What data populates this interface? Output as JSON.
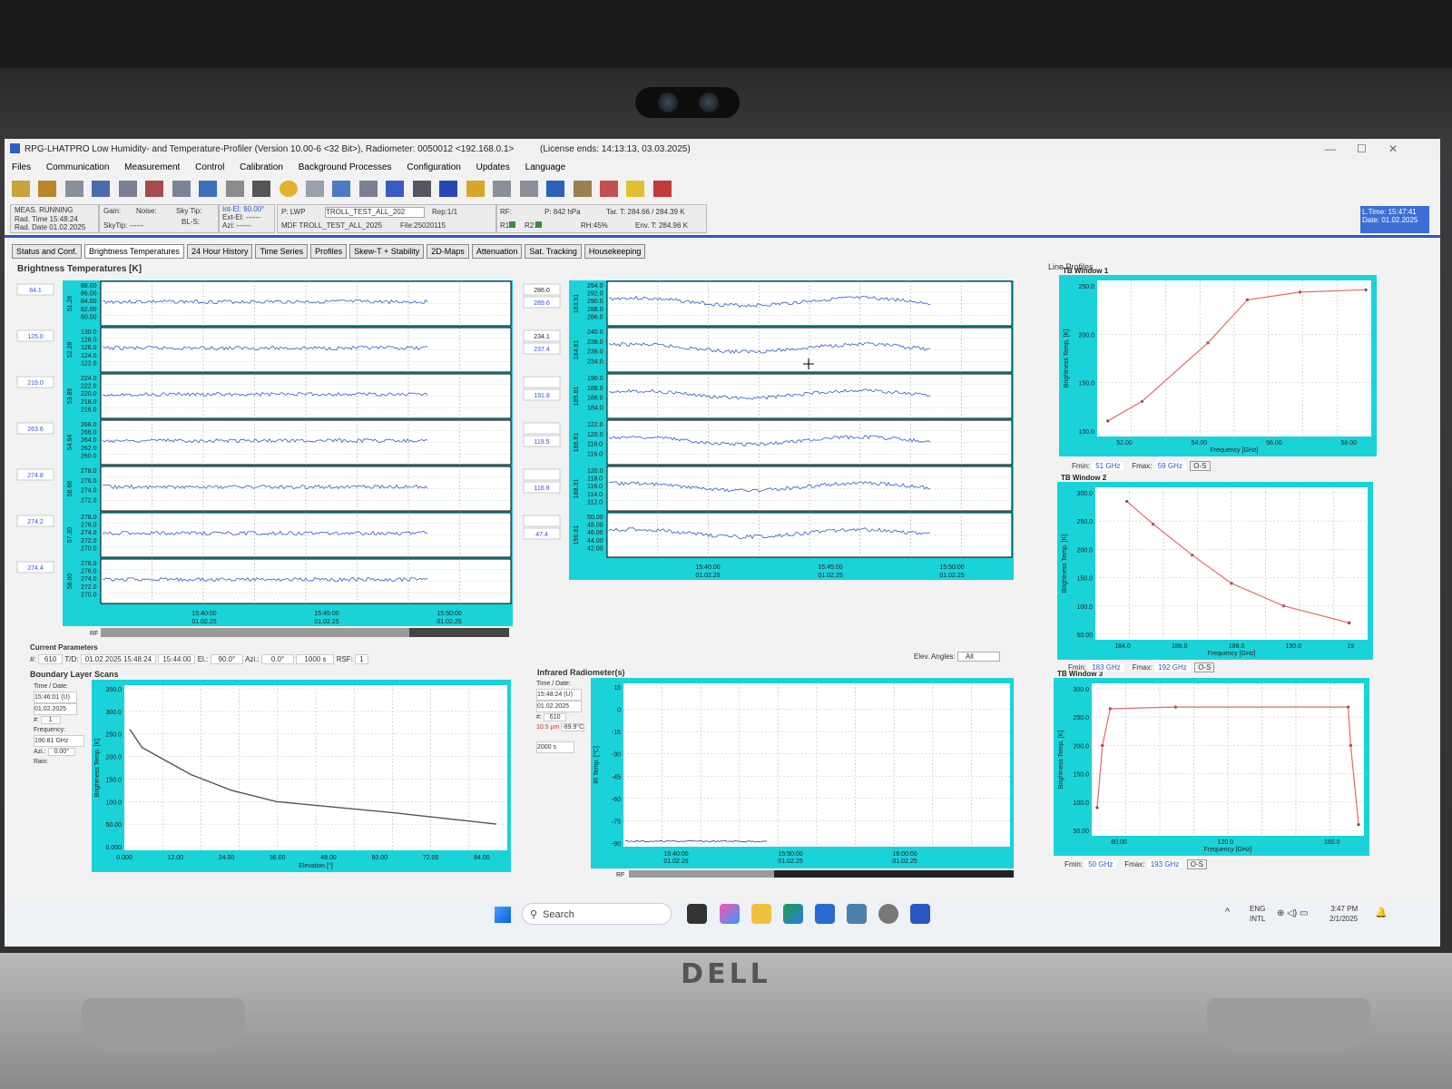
{
  "window": {
    "title": "RPG-LHATPRO  Low Humidity- and Temperature-Profiler  (Version 10.00-6 <32 Bit>), Radiometer: 0050012 <192.168.0.1>",
    "license": "(License ends: 14:13:13, 03.03.2025)"
  },
  "menu": [
    "Files",
    "Communication",
    "Measurement",
    "Control",
    "Calibration",
    "Background Processes",
    "Configuration",
    "Updates",
    "Language"
  ],
  "status": {
    "meas": "MEAS. RUNNING",
    "rad_time": "Rad. Time 15:48:24",
    "rad_date": "Rad. Date 01.02.2025",
    "gain": "Gain:",
    "noise": "Noise:",
    "sky_tip": "Sky Tip:",
    "bl_s": "BL-S:",
    "sky_tip2": "SkyTip: ------",
    "int_el": "Int-El: 90.00°",
    "ext_el": "Ext-El: ------",
    "azi": "Azi: ------",
    "p_label": "P: LWP",
    "mdf_select": "TROLL_TEST_ALL_202",
    "rep": "Rep:1/1",
    "mdf": "MDF TROLL_TEST_ALL_2025",
    "file": "File:25020115",
    "rf": "RF:",
    "r1": "R1:",
    "r2": "R2:",
    "pressure": "P: 842 hPa",
    "tar": "Tar. T: 284.66 / 284.39 K",
    "rh": "RH:45%",
    "env": "Env. T: 284.96 K",
    "ltime": "L.Time: 15:47:41",
    "ldate": "Date: 01.02.2025"
  },
  "tabs": [
    "Status and Conf.",
    "Brightness Temperatures",
    "24 Hour History",
    "Time Series",
    "Profiles",
    "Skew-T + Stability",
    "2D-Maps",
    "Attenuation",
    "Sat. Tracking",
    "Housekeeping"
  ],
  "bt_title": "Brightness Temperatures [K]",
  "left_channels": [
    {
      "name": "51.26",
      "value": "84.1",
      "ticks": [
        "88.00",
        "86.00",
        "84.00",
        "82.00",
        "80.00"
      ],
      "level": 0.5
    },
    {
      "name": "52.28",
      "value": "125.0",
      "ticks": [
        "130.0",
        "128.0",
        "126.0",
        "124.0",
        "122.0"
      ],
      "level": 0.5
    },
    {
      "name": "53.86",
      "value": "219.0",
      "ticks": [
        "224.0",
        "222.0",
        "220.0",
        "218.0",
        "216.0"
      ],
      "level": 0.5
    },
    {
      "name": "54.94",
      "value": "263.6",
      "ticks": [
        "268.0",
        "266.0",
        "264.0",
        "262.0",
        "260.0"
      ],
      "level": 0.5
    },
    {
      "name": "56.66",
      "value": "274.8",
      "ticks": [
        "278.0",
        "276.0",
        "274.0",
        "272.0"
      ],
      "level": 0.5
    },
    {
      "name": "57.30",
      "value": "274.2",
      "ticks": [
        "278.0",
        "276.0",
        "274.0",
        "272.0",
        "270.0"
      ],
      "level": 0.5
    },
    {
      "name": "58.00",
      "value": "274.4",
      "ticks": [
        "278.0",
        "276.0",
        "274.0",
        "272.0",
        "270.0"
      ],
      "level": 0.5
    }
  ],
  "left_times": [
    "15:40:00",
    "15:45:00",
    "15:50:00"
  ],
  "left_dates": [
    "01.02.25",
    "01.02.25",
    "01.02.25"
  ],
  "right_channels": [
    {
      "name": "183.91",
      "value1": "286.0",
      "value2": "289.6",
      "ticks": [
        "294.0",
        "292.0",
        "290.0",
        "288.0",
        "286.0"
      ]
    },
    {
      "name": "184.81",
      "value1": "234.1",
      "value2": "237.4",
      "ticks": [
        "240.0",
        "238.0",
        "236.0",
        "234.0"
      ]
    },
    {
      "name": "185.81",
      "value1": "",
      "value2": "191.8",
      "ticks": [
        "190.0",
        "188.0",
        "186.0",
        "184.0"
      ]
    },
    {
      "name": "186.81",
      "value1": "",
      "value2": "119.5",
      "ticks": [
        "122.0",
        "120.0",
        "118.0",
        "116.0"
      ]
    },
    {
      "name": "188.31",
      "value1": "",
      "value2": "116.8",
      "ticks": [
        "120.0",
        "118.0",
        "116.0",
        "114.0",
        "112.0"
      ]
    },
    {
      "name": "190.81",
      "value1": "",
      "value2": "47.4",
      "ticks": [
        "50.00",
        "48.00",
        "46.00",
        "44.00",
        "42.00"
      ]
    }
  ],
  "right_times": [
    "15:40:00",
    "15:45:00",
    "15:50:00"
  ],
  "right_dates": [
    "01.02.25",
    "01.02.25",
    "01.02.25"
  ],
  "rf_label": "RF",
  "current_params": {
    "title": "Current Parameters",
    "num_label": "#:",
    "num": "610",
    "td_label": "T/D:",
    "td": "01.02.2025  15:48:24",
    "time2": "15:44:00",
    "el_label": "El.:",
    "el": "90.0°",
    "azi_label": "Azi.:",
    "azi": "0.0°",
    "dur": "1000 s",
    "rsf_label": "RSF:",
    "rsf": "1",
    "elev_angles_label": "Elev. Angles:",
    "elev_angles": "All"
  },
  "bl": {
    "title": "Boundary Layer Scans",
    "time_date_label": "Time / Date:",
    "time": "15:46:01 (U)",
    "date": "01.02.2025",
    "num_label": "#:",
    "num": "1",
    "freq_label": "Frequency:",
    "freq": "190.81 GHz",
    "azi_label": "Azi.:",
    "azi": "0.00°",
    "rain_label": "Rain:",
    "ylabel": "Brightness Temp. [K]",
    "xlabel": "Elevation [°]",
    "yticks": [
      "350.0",
      "300.0",
      "250.0",
      "200.0",
      "150.0",
      "100.0",
      "50.00",
      "0.000"
    ],
    "xticks": [
      "0.000",
      "12.00",
      "24.00",
      "36.00",
      "48.00",
      "60.00",
      "72.00",
      "84.00"
    ]
  },
  "ir": {
    "title": "Infrared Radiometer(s)",
    "time_date_label": "Time / Date:",
    "time": "15:48:24 (U)",
    "date": "01.02.2025",
    "num_label": "#:",
    "num": "610",
    "wavelength": "10.5 µm",
    "temp": "-89.9°C",
    "dur": "2000 s",
    "ylabel": "IR Temp. [°C]",
    "yticks": [
      "15",
      "0",
      "-15",
      "-30",
      "-45",
      "-60",
      "-75",
      "-90"
    ],
    "times": [
      "15:40:00",
      "15:50:00",
      "16:00:00"
    ],
    "dates": [
      "01.02.25",
      "01.02.25",
      "01.02.25"
    ],
    "rf_label": "RF"
  },
  "line_profiles": {
    "title": "Line Profiles",
    "windows": [
      {
        "title": "TB Window 1",
        "ylabel": "Brightness Temp. [K]",
        "xlabel": "Frequency [GHz]",
        "yticks": [
          "250.0",
          "200.0",
          "150.0",
          "100.0"
        ],
        "xticks": [
          "52.00",
          "54.00",
          "56.00",
          "58.00"
        ],
        "fmin_label": "Fmin:",
        "fmin": "51 GHz",
        "fmax_label": "Fmax:",
        "fmax": "59 GHz",
        "os": "O-S"
      },
      {
        "title": "TB Window 2",
        "ylabel": "Brightness Temp. [K]",
        "xlabel": "Frequency [GHz]",
        "yticks": [
          "300.0",
          "250.0",
          "200.0",
          "150.0",
          "100.0",
          "50.00"
        ],
        "xticks": [
          "184.0",
          "186.0",
          "188.0",
          "190.0",
          "19"
        ],
        "fmin_label": "Fmin:",
        "fmin": "183 GHz",
        "fmax_label": "Fmax:",
        "fmax": "192 GHz",
        "os": "O-S"
      },
      {
        "title": "TB Window 3",
        "ylabel": "Brightness Temp. [K]",
        "xlabel": "Frequency [GHz]",
        "yticks": [
          "300.0",
          "250.0",
          "200.0",
          "150.0",
          "100.0",
          "50.00"
        ],
        "xticks": [
          "80.00",
          "120.0",
          "160.0"
        ],
        "fmin_label": "Fmin:",
        "fmin": "50 GHz",
        "fmax_label": "Fmax:",
        "fmax": "193 GHz",
        "os": "O-S"
      }
    ]
  },
  "taskbar": {
    "search": "Search",
    "lang1": "ENG",
    "lang2": "INTL",
    "clock": "3:47 PM",
    "date": "2/1/2025"
  },
  "logo": "DELL",
  "colors": {
    "cyan": "#19d3d9",
    "trace": "#3557c7",
    "profile": "#e06a6a",
    "accent": "#2f55c8"
  }
}
